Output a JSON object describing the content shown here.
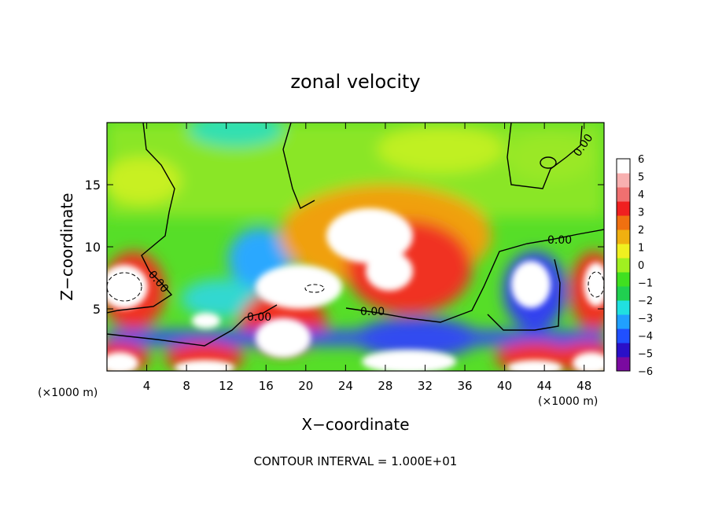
{
  "chart_data": {
    "type": "heatmap",
    "title": "zonal velocity",
    "xlabel": "X−coordinate",
    "ylabel": "Z−coordinate",
    "x_unit": "(×1000 m)",
    "x_unit_right": "(×1000 m)",
    "xlim": [
      0,
      50
    ],
    "ylim": [
      0,
      20
    ],
    "x_ticks": [
      4,
      8,
      12,
      16,
      20,
      24,
      28,
      32,
      36,
      40,
      44,
      48
    ],
    "y_ticks": [
      5,
      10,
      15
    ],
    "colorbar": {
      "min": -6,
      "max": 6,
      "ticks": [
        6,
        5,
        4,
        3,
        2,
        1,
        0,
        -1,
        -2,
        -3,
        -4,
        -5,
        -6
      ],
      "tick_labels": [
        "6",
        "5",
        "4",
        "3",
        "2",
        "1",
        "0",
        "−1",
        "−2",
        "−3",
        "−4",
        "−5",
        "−6"
      ],
      "colors": [
        "#7a0aa0",
        "#2a10c8",
        "#2050ff",
        "#20a0ff",
        "#20e0e0",
        "#20d050",
        "#40e020",
        "#a0f020",
        "#f0f020",
        "#f0b010",
        "#f07010",
        "#f02020",
        "#f07070",
        "#f8b0b0",
        "#ffffff"
      ]
    },
    "contour_labels": [
      "0.00",
      "0.00",
      "0.00",
      "0.00",
      "0.00"
    ],
    "footer": "CONTOUR INTERVAL = 1.000E+01",
    "grid": false
  }
}
